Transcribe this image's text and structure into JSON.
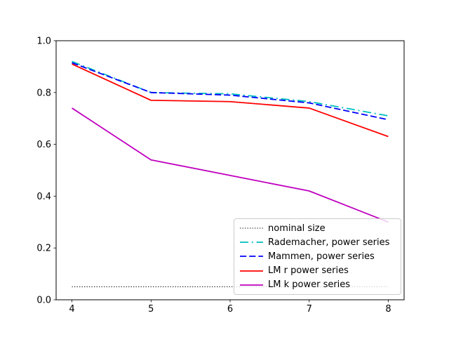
{
  "figure": {
    "background": "#ffffff"
  },
  "chart_data": {
    "type": "line",
    "title": "",
    "xlabel": "",
    "ylabel": "",
    "grid": false,
    "legend_position": "lower right",
    "xlim": [
      3.8,
      8.2
    ],
    "ylim": [
      0.0,
      1.0
    ],
    "xtick_values": [
      4,
      5,
      6,
      7,
      8
    ],
    "xtick_labels": [
      "4",
      "5",
      "6",
      "7",
      "8"
    ],
    "ytick_values": [
      0.0,
      0.2,
      0.4,
      0.6,
      0.8,
      1.0
    ],
    "ytick_labels": [
      "0.0",
      "0.2",
      "0.4",
      "0.6",
      "0.8",
      "1.0"
    ],
    "x": [
      4,
      5,
      6,
      7,
      8
    ],
    "series": [
      {
        "name": "nominal size",
        "color": "#000000",
        "style": "dotted",
        "width": 1,
        "values": [
          0.05,
          0.05,
          0.05,
          0.05,
          0.05
        ]
      },
      {
        "name": "Rademacher, power series",
        "color": "#00bfbf",
        "style": "dashdot",
        "width": 1.8,
        "values": [
          0.92,
          0.8,
          0.795,
          0.765,
          0.71
        ]
      },
      {
        "name": "Mammen, power series",
        "color": "#0000ff",
        "style": "dashed",
        "width": 1.8,
        "values": [
          0.915,
          0.8,
          0.79,
          0.76,
          0.695
        ]
      },
      {
        "name": "LM r power series",
        "color": "#ff0000",
        "style": "solid",
        "width": 1.8,
        "values": [
          0.91,
          0.77,
          0.765,
          0.74,
          0.63
        ]
      },
      {
        "name": "LM k power series",
        "color": "#bf00bf",
        "style": "solid",
        "width": 1.8,
        "values": [
          0.74,
          0.54,
          0.48,
          0.42,
          0.3
        ]
      }
    ]
  }
}
